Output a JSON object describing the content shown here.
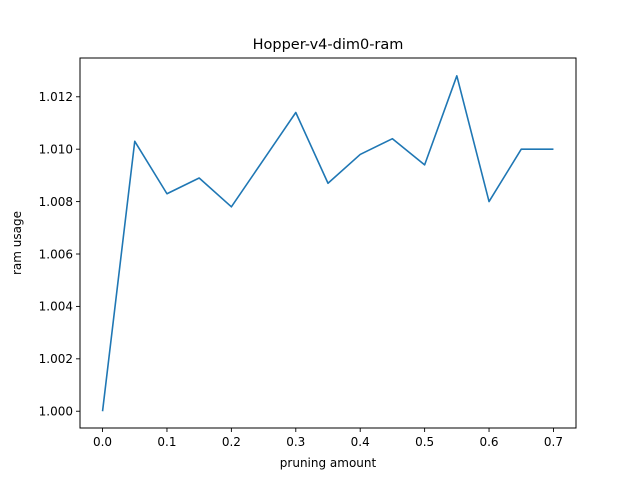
{
  "chart_data": {
    "type": "line",
    "title": "Hopper-v4-dim0-ram",
    "xlabel": "pruning amount",
    "ylabel": "ram usage",
    "xlim": [
      -0.035,
      0.735
    ],
    "ylim": [
      0.99936,
      1.01348
    ],
    "xticks": [
      0.0,
      0.1,
      0.2,
      0.3,
      0.4,
      0.5,
      0.6,
      0.7
    ],
    "xtick_labels": [
      "0.0",
      "0.1",
      "0.2",
      "0.3",
      "0.4",
      "0.5",
      "0.6",
      "0.7"
    ],
    "yticks": [
      1.0,
      1.002,
      1.004,
      1.006,
      1.008,
      1.01,
      1.012
    ],
    "ytick_labels": [
      "1.000",
      "1.002",
      "1.004",
      "1.006",
      "1.008",
      "1.010",
      "1.012"
    ],
    "grid": false,
    "series": [
      {
        "color": "#1f77b4",
        "x": [
          0.0,
          0.05,
          0.1,
          0.15,
          0.2,
          0.25,
          0.3,
          0.35,
          0.4,
          0.45,
          0.5,
          0.55,
          0.6,
          0.65,
          0.7
        ],
        "y": [
          1.0,
          1.0103,
          1.0083,
          1.0089,
          1.0078,
          1.0096,
          1.0114,
          1.0087,
          1.0098,
          1.0104,
          1.0094,
          1.0128,
          1.008,
          1.01,
          1.01
        ]
      }
    ]
  }
}
